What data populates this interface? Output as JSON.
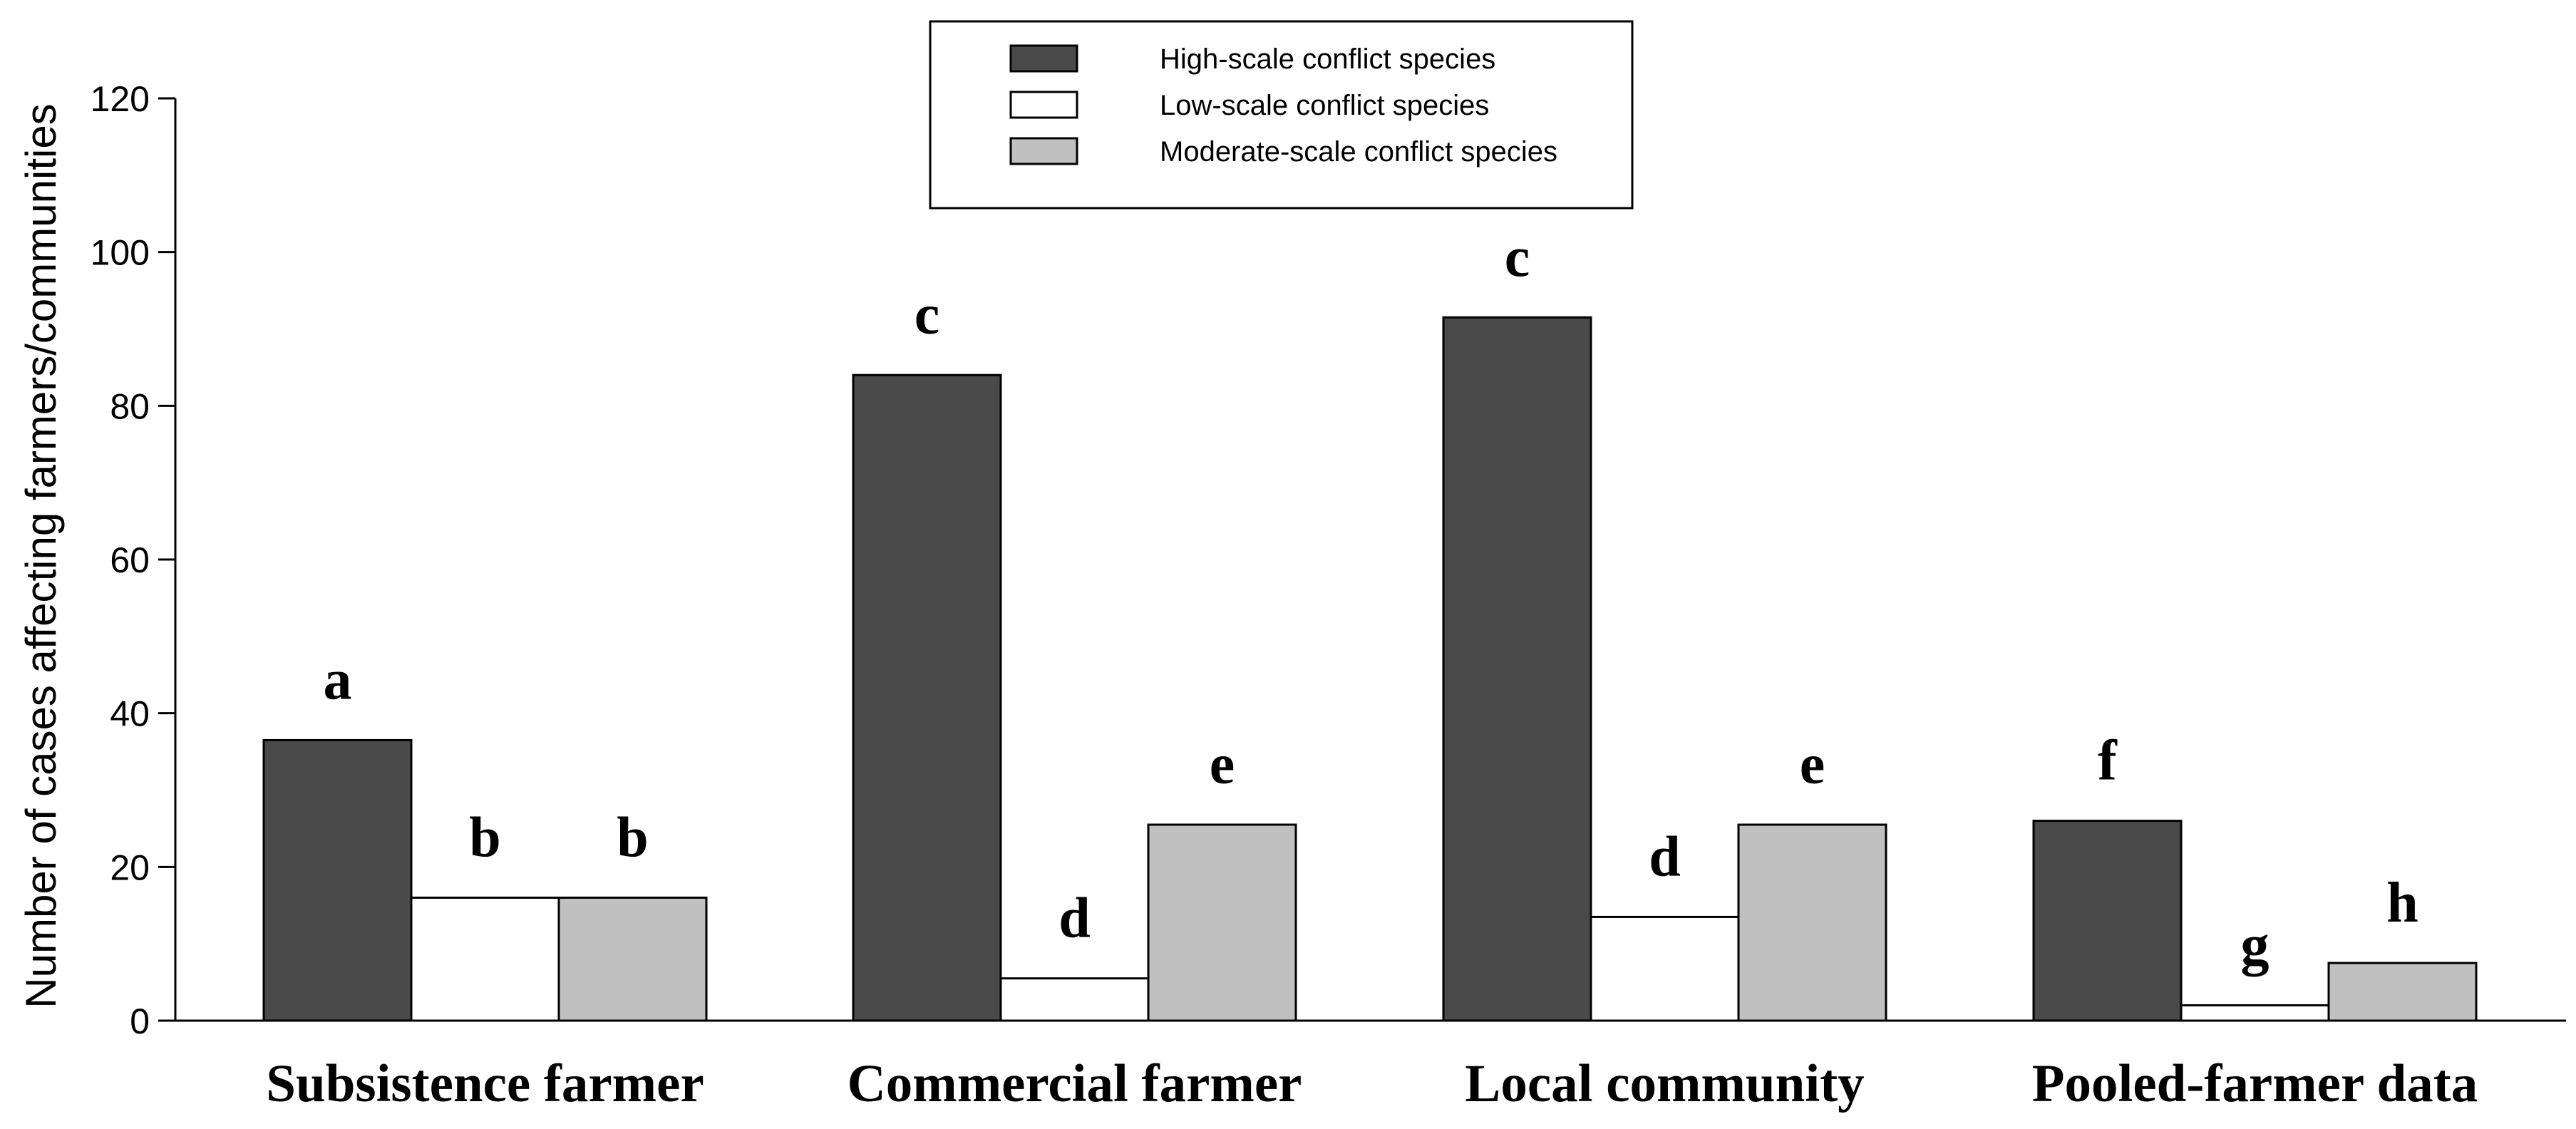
{
  "chart_data": {
    "type": "bar",
    "categories": [
      "Subsistence farmer",
      "Commercial farmer",
      "Local community",
      "Pooled-farmer data"
    ],
    "series": [
      {
        "name": "High-scale conflict species",
        "color": "#4a4a4a",
        "values": [
          36.5,
          84,
          91.5,
          26
        ],
        "labels": [
          "a",
          "c",
          "c",
          "f"
        ]
      },
      {
        "name": "Low-scale conflict species",
        "color": "#ffffff",
        "values": [
          16,
          5.5,
          13.5,
          2
        ],
        "labels": [
          "b",
          "d",
          "d",
          "g"
        ]
      },
      {
        "name": "Moderate-scale conflict species",
        "color": "#c0c0c0",
        "values": [
          16,
          25.5,
          25.5,
          7.5
        ],
        "labels": [
          "b",
          "e",
          "e",
          "h"
        ]
      }
    ],
    "ylabel": "Number of cases affecting farmers/communities",
    "xlabel": "",
    "ylim": [
      0,
      120
    ],
    "yticks": [
      0,
      20,
      40,
      60,
      80,
      100,
      120
    ],
    "grid": false,
    "legend_position": "top-center"
  }
}
